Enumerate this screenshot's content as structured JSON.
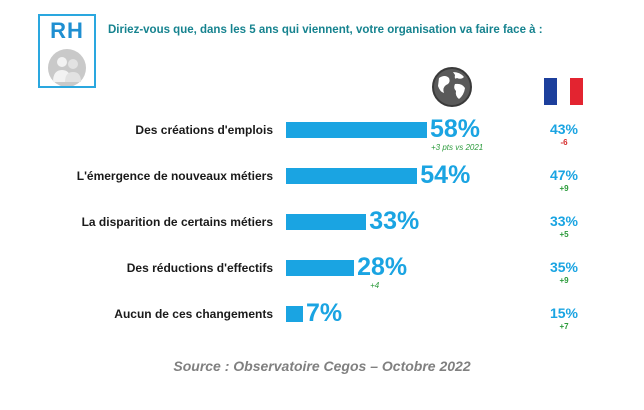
{
  "header": {
    "badge": "RH",
    "question": "Diriez-vous que, dans les 5 ans qui viennent, votre organisation va faire face à :"
  },
  "icons": {
    "world": "globe-icon",
    "france": "france-flag-icon"
  },
  "colors": {
    "bar": "#1aa4e2",
    "positive": "#2a9a3a",
    "negative": "#d42a2a",
    "question": "#16838f"
  },
  "chart_data": {
    "type": "bar",
    "orientation": "horizontal",
    "categories": [
      "Des créations d'emplois",
      "L'émergence de nouveaux métiers",
      "La disparition de certains métiers",
      "Des réductions d'effectifs",
      "Aucun de ces changements"
    ],
    "series": [
      {
        "values": [
          58,
          54,
          33,
          28,
          7
        ],
        "labels": [
          "58%",
          "54%",
          "33%",
          "28%",
          "7%"
        ],
        "diffs": [
          "+3 pts vs 2021",
          "",
          "",
          "+4",
          ""
        ]
      },
      {
        "values": [
          43,
          47,
          33,
          35,
          15
        ],
        "labels": [
          "43%",
          "47%",
          "33%",
          "35%",
          "15%"
        ],
        "diffs": [
          "-6",
          "+9",
          "+5",
          "+9",
          "+7"
        ]
      }
    ],
    "xlim": [
      0,
      58
    ]
  },
  "source": "Source : Observatoire Cegos – Octobre 2022"
}
